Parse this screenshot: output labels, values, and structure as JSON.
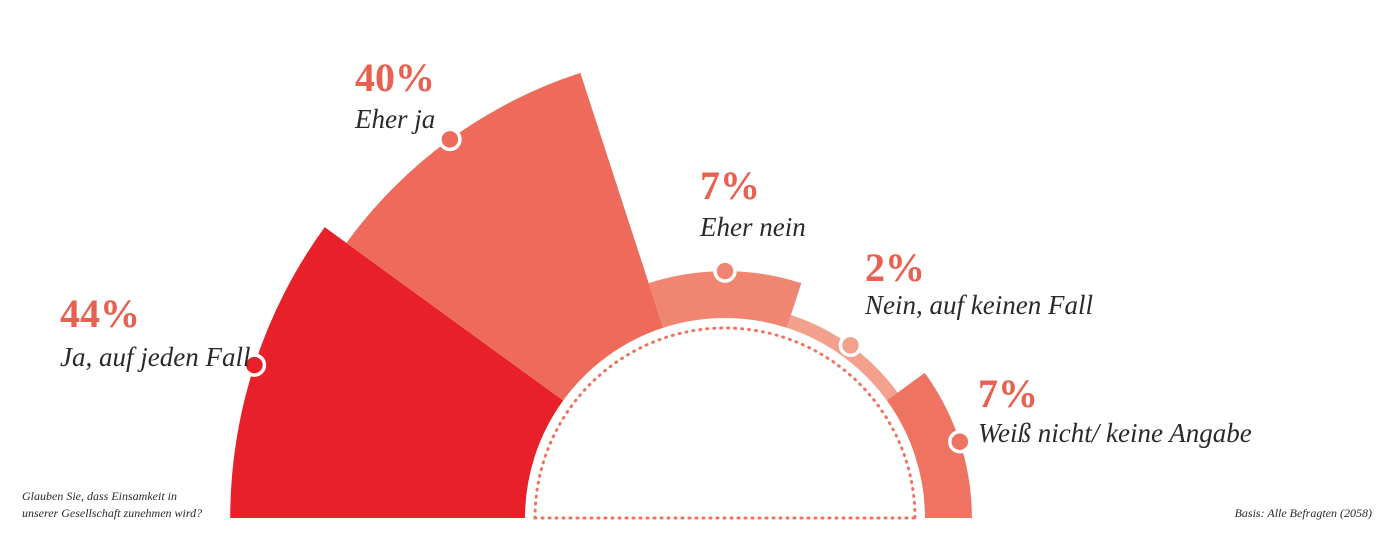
{
  "chart_data": {
    "type": "radial-bar",
    "categories": [
      "Ja, auf jeden Fall",
      "Eher ja",
      "Eher nein",
      "Nein, auf keinen Fall",
      "Weiß nicht/ keine Angabe"
    ],
    "values": [
      44,
      40,
      7,
      2,
      7
    ],
    "value_labels": [
      "44%",
      "40%",
      "7%",
      "2%",
      "7%"
    ],
    "colors": [
      "#e8202a",
      "#ee6b5b",
      "#f08572",
      "#f4a08e",
      "#ee7361"
    ],
    "question": [
      "Glauben Sie, dass Einsamkeit in",
      "unserer Gesellschaft zunehmen wird?"
    ],
    "source": "Basis: Alle Befragten (2058)"
  }
}
